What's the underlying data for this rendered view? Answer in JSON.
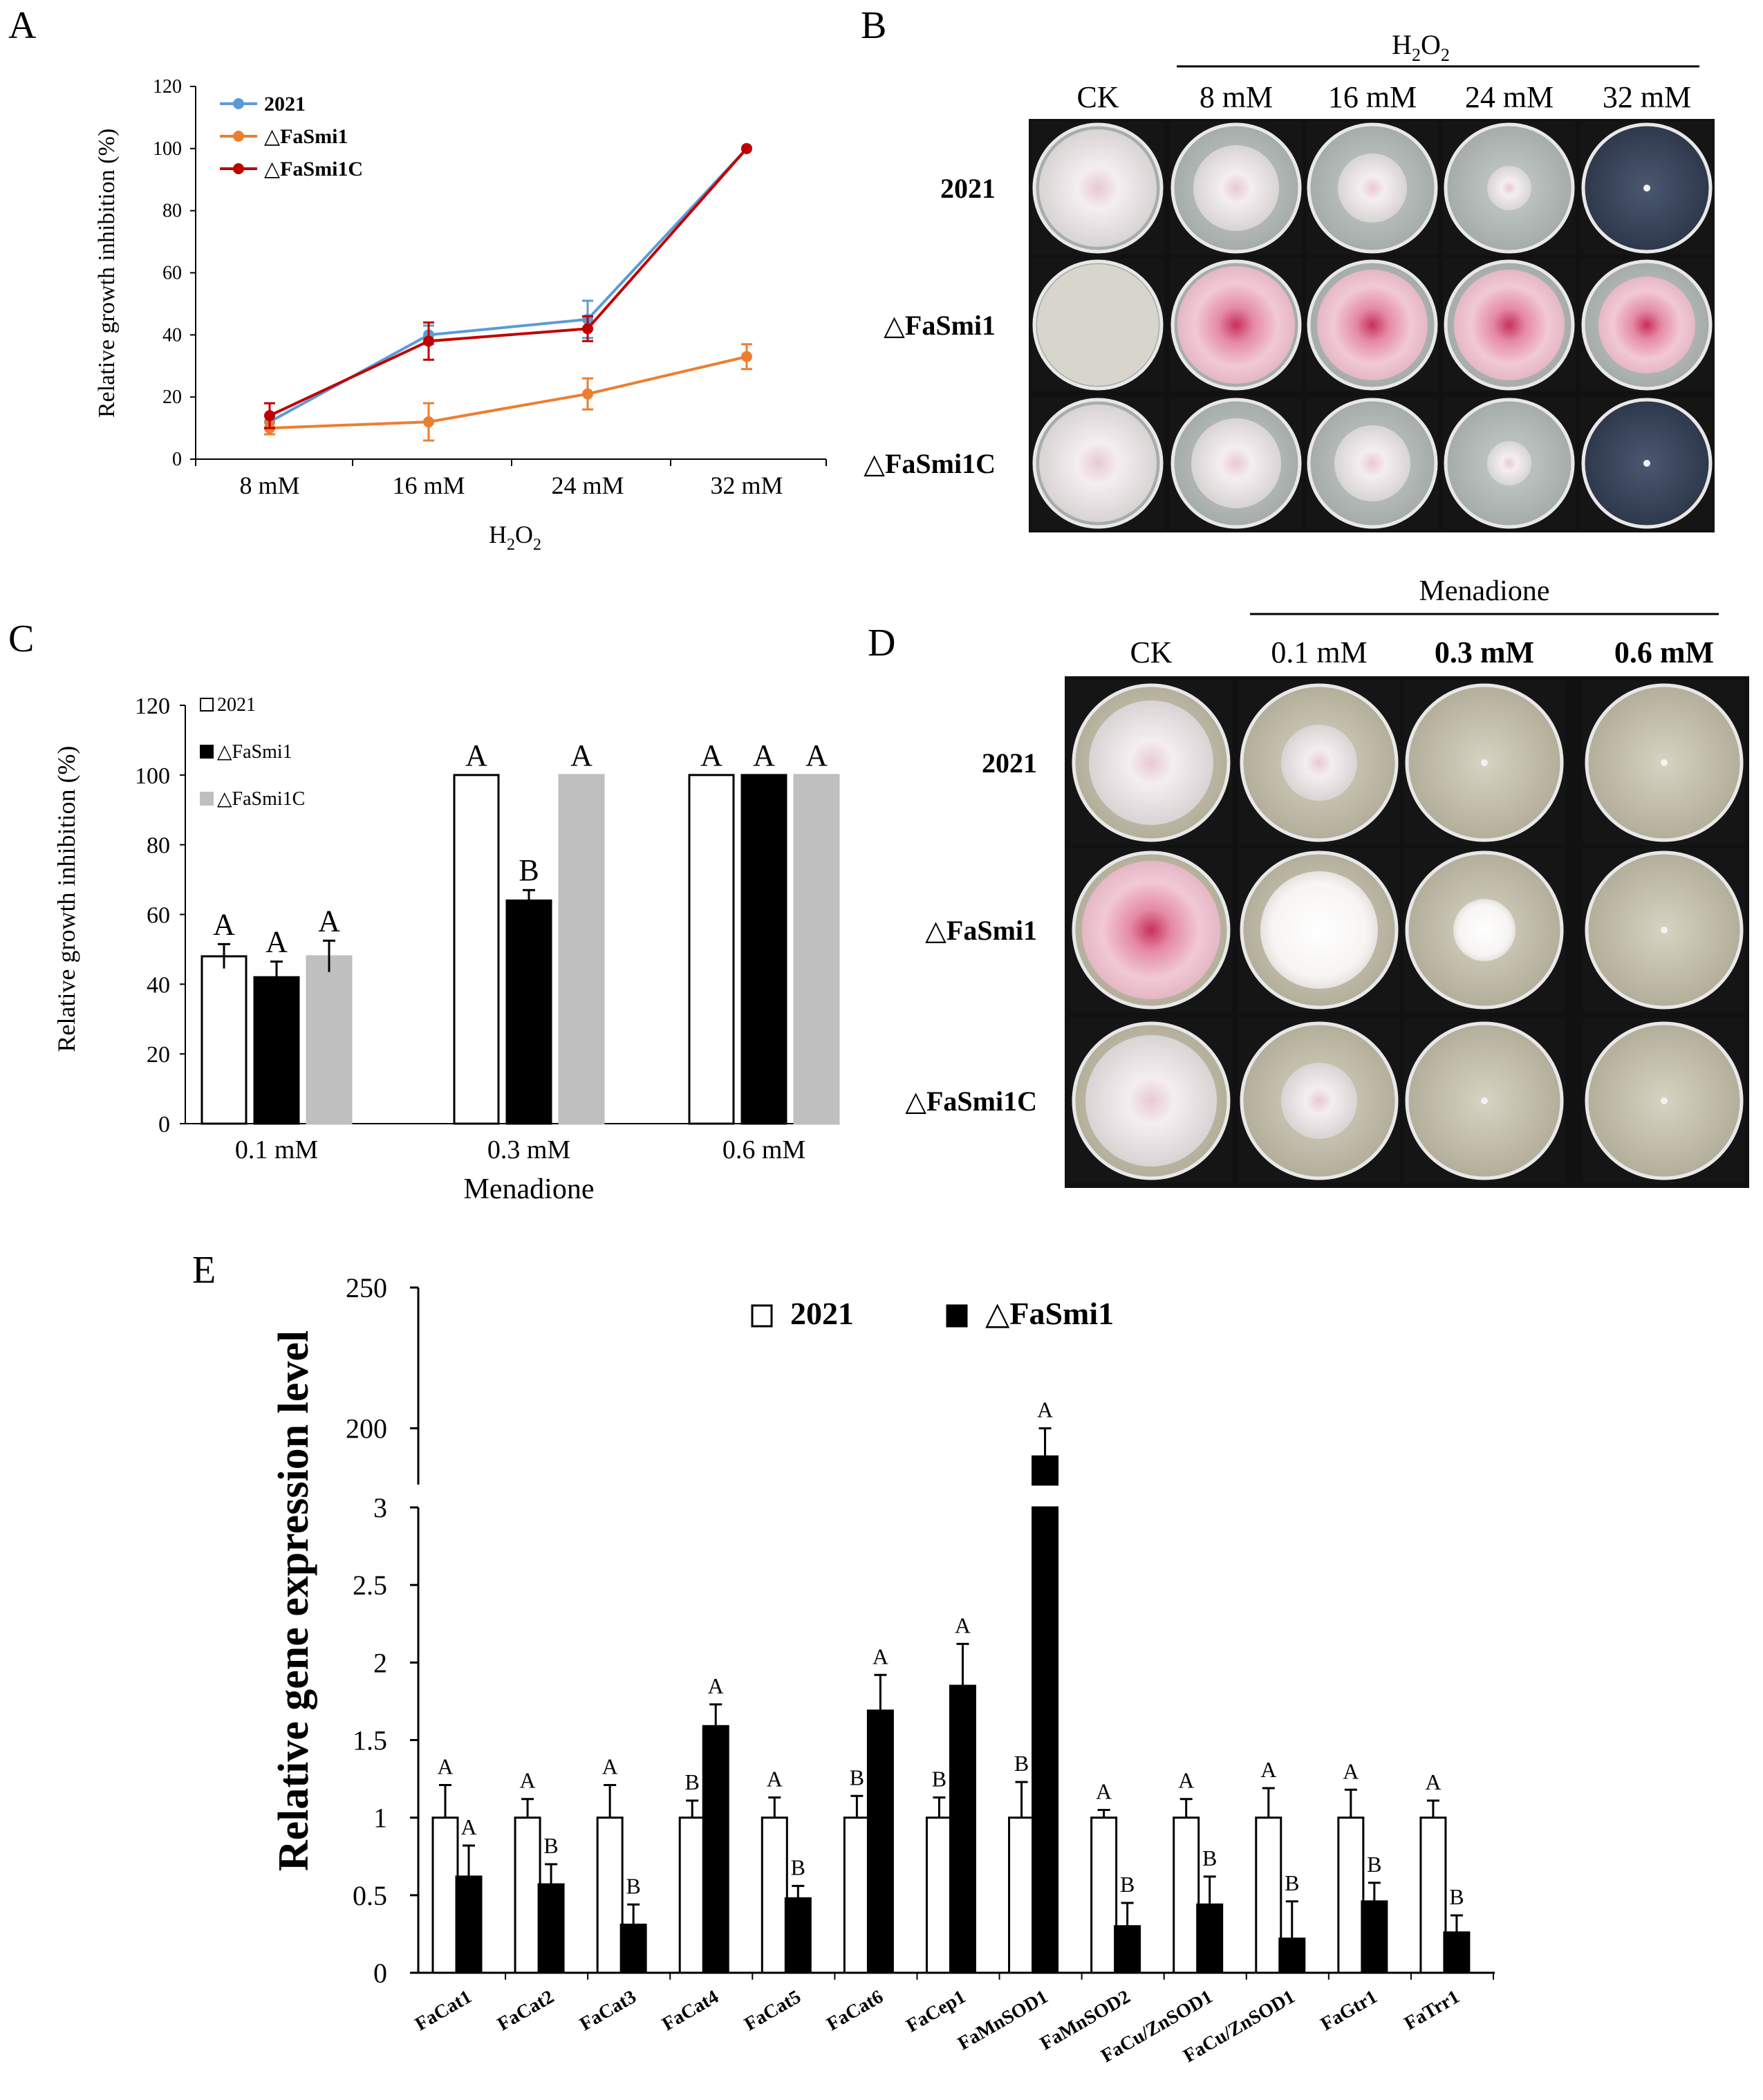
{
  "panels": [
    {
      "id": "A",
      "label": "A"
    },
    {
      "id": "B",
      "label": "B"
    },
    {
      "id": "C",
      "label": "C"
    },
    {
      "id": "D",
      "label": "D"
    },
    {
      "id": "E",
      "label": "E"
    }
  ],
  "panel_b": {
    "group_label": "H",
    "group_sub": "2",
    "group_label2": "O",
    "group_sub2": "2",
    "columns": [
      "CK",
      "8 mM",
      "16 mM",
      "24 mM",
      "32 mM"
    ],
    "rows": [
      "2021",
      "△FaSmi1",
      "△FaSmi1C"
    ],
    "colony_colors": {
      "wild": "#f1e9ec",
      "mutant": "#e07a9a",
      "agar": "#bfc7c4"
    }
  },
  "panel_d": {
    "group_label": "Menadione",
    "columns": [
      "CK",
      "0.1 mM",
      "0.3 mM",
      "0.6 mM"
    ],
    "rows": [
      "2021",
      "△FaSmi1",
      "△FaSmi1C"
    ]
  },
  "chart_data": [
    {
      "panel": "A",
      "type": "line",
      "categories": [
        "8 mM",
        "16 mM",
        "24 mM",
        "32 mM"
      ],
      "series": [
        {
          "name": "2021",
          "color": "#5b9bd5",
          "values": [
            12,
            40,
            45,
            100
          ],
          "errors": [
            2,
            3,
            6,
            0
          ]
        },
        {
          "name": "△FaSmi1",
          "color": "#ed7d31",
          "values": [
            10,
            12,
            21,
            33
          ],
          "errors": [
            2,
            6,
            5,
            4
          ]
        },
        {
          "name": "△FaSmi1C",
          "color": "#c00000",
          "values": [
            14,
            38,
            42,
            100
          ],
          "errors": [
            4,
            6,
            4,
            0
          ]
        }
      ],
      "xlabel": "H2O2",
      "ylabel": "Relative growth inhibition (%)",
      "ylim": [
        0,
        120
      ],
      "yticks": [
        0,
        20,
        40,
        60,
        80,
        100,
        120
      ]
    },
    {
      "panel": "C",
      "type": "bar",
      "categories": [
        "0.1 mM",
        "0.3 mM",
        "0.6 mM"
      ],
      "series": [
        {
          "name": "2021",
          "color": "#ffffff",
          "values": [
            48,
            100,
            100
          ],
          "errors": [
            3.5,
            0,
            0
          ],
          "letters": [
            "A",
            "A",
            "A"
          ]
        },
        {
          "name": "△FaSmi1",
          "color": "#000000",
          "values": [
            42,
            64,
            100
          ],
          "errors": [
            4.5,
            3,
            0
          ],
          "letters": [
            "A",
            "B",
            "A"
          ]
        },
        {
          "name": "△FaSmi1C",
          "color": "#bfbfbf",
          "values": [
            48,
            100,
            100
          ],
          "errors": [
            4.5,
            0,
            0
          ],
          "letters": [
            "A",
            "A",
            "A"
          ]
        }
      ],
      "xlabel": "Menadione",
      "ylabel": "Relative growth inhibition (%)",
      "ylim": [
        0,
        120
      ],
      "yticks": [
        0,
        20,
        40,
        60,
        80,
        100,
        120
      ]
    },
    {
      "panel": "E",
      "type": "bar",
      "categories": [
        "FaCat1",
        "FaCat2",
        "FaCat3",
        "FaCat4",
        "FaCat5",
        "FaCat6",
        "FaCep1",
        "FaMnSOD1",
        "FaMnSOD2",
        "FaCu/ZnSOD1",
        "FaCu/ZnSOD1",
        "FaGtr1",
        "FaTrr1"
      ],
      "series": [
        {
          "name": "2021",
          "color": "#ffffff",
          "values": [
            1,
            1,
            1,
            1,
            1,
            1,
            1,
            1,
            1,
            1,
            1,
            1,
            1
          ],
          "errors": [
            0.21,
            0.12,
            0.21,
            0.11,
            0.13,
            0.14,
            0.13,
            0.23,
            0.05,
            0.12,
            0.19,
            0.18,
            0.11
          ],
          "letters": [
            "A",
            "A",
            "A",
            "B",
            "A",
            "B",
            "B",
            "B",
            "A",
            "A",
            "A",
            "A",
            "A"
          ]
        },
        {
          "name": "△FaSmi1",
          "color": "#000000",
          "values": [
            0.62,
            0.57,
            0.31,
            1.59,
            0.48,
            1.69,
            1.85,
            190,
            0.3,
            0.44,
            0.22,
            0.46,
            0.26
          ],
          "errors": [
            0.2,
            0.13,
            0.13,
            0.14,
            0.08,
            0.23,
            0.27,
            10,
            0.15,
            0.18,
            0.24,
            0.12,
            0.11
          ],
          "letters": [
            "A",
            "B",
            "B",
            "A",
            "B",
            "A",
            "A",
            "A",
            "B",
            "B",
            "B",
            "B",
            "B"
          ]
        }
      ],
      "ylabel": "Relative gene expression level",
      "axis_break": {
        "lower_range": [
          0,
          3
        ],
        "upper_range": [
          180,
          250
        ]
      },
      "yticks_lower": [
        "0",
        "0.5",
        "1",
        "1.5",
        "2",
        "2.5",
        "3"
      ],
      "yticks_upper": [
        "200",
        "250"
      ]
    }
  ]
}
